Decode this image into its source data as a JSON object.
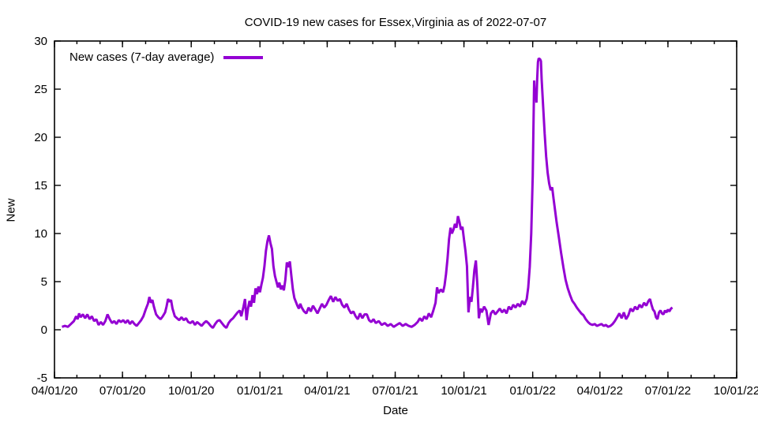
{
  "chart_data": {
    "type": "line",
    "title": "COVID-19 new cases for Essex,Virginia as of 2022-07-07",
    "xlabel": "Date",
    "ylabel": "New",
    "grid": false,
    "background_color": "#ffffff",
    "axis_color": "#000000",
    "ylim": [
      -5,
      30
    ],
    "y_ticks": [
      -5,
      0,
      5,
      10,
      15,
      20,
      25,
      30
    ],
    "xlim_dates": [
      "2020-04-01",
      "2022-10-01"
    ],
    "x_minor_tick_interval": "1 month",
    "x_ticks": [
      {
        "date": "2020-04-01",
        "label": "04/01/20"
      },
      {
        "date": "2020-07-01",
        "label": "07/01/20"
      },
      {
        "date": "2020-10-01",
        "label": "10/01/20"
      },
      {
        "date": "2021-01-01",
        "label": "01/01/21"
      },
      {
        "date": "2021-04-01",
        "label": "04/01/21"
      },
      {
        "date": "2021-07-01",
        "label": "07/01/21"
      },
      {
        "date": "2021-10-01",
        "label": "10/01/21"
      },
      {
        "date": "2022-01-01",
        "label": "01/01/22"
      },
      {
        "date": "2022-04-01",
        "label": "04/01/22"
      },
      {
        "date": "2022-07-01",
        "label": "07/01/22"
      },
      {
        "date": "2022-10-01",
        "label": "10/01/22"
      }
    ],
    "legend": {
      "position": "top-left-inside",
      "entries": [
        "New cases (7-day average)"
      ]
    },
    "series": [
      {
        "name": "New cases (7-day average)",
        "color": "#9400d3",
        "line_width": 3,
        "x_epoch": "2020-04-01",
        "x_unit": "days_since_epoch",
        "points": [
          [
            10,
            0.3
          ],
          [
            14,
            0.4
          ],
          [
            18,
            0.3
          ],
          [
            22,
            0.6
          ],
          [
            26,
            0.9
          ],
          [
            29,
            1.4
          ],
          [
            31,
            1.1
          ],
          [
            33,
            1.7
          ],
          [
            35,
            1.3
          ],
          [
            38,
            1.6
          ],
          [
            41,
            1.2
          ],
          [
            44,
            1.6
          ],
          [
            47,
            1.1
          ],
          [
            50,
            1.4
          ],
          [
            53,
            0.9
          ],
          [
            56,
            1.1
          ],
          [
            59,
            0.5
          ],
          [
            62,
            0.8
          ],
          [
            65,
            0.5
          ],
          [
            68,
            0.9
          ],
          [
            71,
            1.6
          ],
          [
            74,
            1.1
          ],
          [
            77,
            0.7
          ],
          [
            80,
            0.9
          ],
          [
            83,
            0.6
          ],
          [
            86,
            1.0
          ],
          [
            89,
            0.8
          ],
          [
            92,
            1.0
          ],
          [
            95,
            0.7
          ],
          [
            98,
            1.0
          ],
          [
            101,
            0.6
          ],
          [
            104,
            0.9
          ],
          [
            107,
            0.6
          ],
          [
            110,
            0.4
          ],
          [
            113,
            0.7
          ],
          [
            116,
            1.0
          ],
          [
            119,
            1.4
          ],
          [
            122,
            2.1
          ],
          [
            125,
            2.7
          ],
          [
            127,
            3.4
          ],
          [
            129,
            2.8
          ],
          [
            131,
            3.1
          ],
          [
            133,
            2.4
          ],
          [
            136,
            1.6
          ],
          [
            139,
            1.3
          ],
          [
            142,
            1.1
          ],
          [
            145,
            1.4
          ],
          [
            148,
            1.8
          ],
          [
            150,
            2.4
          ],
          [
            152,
            3.2
          ],
          [
            154,
            2.9
          ],
          [
            156,
            3.1
          ],
          [
            158,
            2.2
          ],
          [
            161,
            1.4
          ],
          [
            164,
            1.2
          ],
          [
            167,
            1.0
          ],
          [
            170,
            1.3
          ],
          [
            173,
            1.0
          ],
          [
            176,
            1.2
          ],
          [
            179,
            0.8
          ],
          [
            182,
            0.7
          ],
          [
            185,
            0.9
          ],
          [
            188,
            0.5
          ],
          [
            191,
            0.8
          ],
          [
            194,
            0.6
          ],
          [
            197,
            0.4
          ],
          [
            200,
            0.7
          ],
          [
            203,
            0.9
          ],
          [
            206,
            0.7
          ],
          [
            209,
            0.4
          ],
          [
            212,
            0.2
          ],
          [
            215,
            0.6
          ],
          [
            218,
            0.9
          ],
          [
            221,
            1.0
          ],
          [
            224,
            0.7
          ],
          [
            227,
            0.4
          ],
          [
            230,
            0.2
          ],
          [
            233,
            0.7
          ],
          [
            236,
            1.0
          ],
          [
            239,
            1.2
          ],
          [
            242,
            1.5
          ],
          [
            245,
            1.8
          ],
          [
            248,
            2.0
          ],
          [
            250,
            1.4
          ],
          [
            253,
            2.4
          ],
          [
            255,
            3.2
          ],
          [
            257,
            1.0
          ],
          [
            259,
            2.2
          ],
          [
            261,
            3.0
          ],
          [
            263,
            2.4
          ],
          [
            265,
            3.6
          ],
          [
            267,
            2.8
          ],
          [
            269,
            4.3
          ],
          [
            271,
            3.7
          ],
          [
            273,
            4.5
          ],
          [
            275,
            3.9
          ],
          [
            277,
            4.7
          ],
          [
            279,
            5.4
          ],
          [
            281,
            6.6
          ],
          [
            283,
            8.2
          ],
          [
            285,
            9.2
          ],
          [
            287,
            9.8
          ],
          [
            289,
            9.0
          ],
          [
            291,
            8.4
          ],
          [
            293,
            6.6
          ],
          [
            295,
            5.6
          ],
          [
            297,
            5.0
          ],
          [
            299,
            4.4
          ],
          [
            301,
            4.9
          ],
          [
            303,
            4.2
          ],
          [
            305,
            4.6
          ],
          [
            307,
            4.1
          ],
          [
            309,
            5.2
          ],
          [
            311,
            7.0
          ],
          [
            313,
            6.5
          ],
          [
            315,
            7.1
          ],
          [
            317,
            5.6
          ],
          [
            319,
            4.2
          ],
          [
            321,
            3.3
          ],
          [
            323,
            2.9
          ],
          [
            325,
            2.5
          ],
          [
            327,
            2.2
          ],
          [
            329,
            2.7
          ],
          [
            331,
            2.3
          ],
          [
            334,
            1.9
          ],
          [
            337,
            1.7
          ],
          [
            340,
            2.3
          ],
          [
            343,
            1.9
          ],
          [
            346,
            2.5
          ],
          [
            349,
            2.1
          ],
          [
            352,
            1.7
          ],
          [
            355,
            2.2
          ],
          [
            358,
            2.7
          ],
          [
            361,
            2.3
          ],
          [
            364,
            2.6
          ],
          [
            367,
            3.1
          ],
          [
            370,
            3.5
          ],
          [
            373,
            2.9
          ],
          [
            376,
            3.4
          ],
          [
            379,
            3.0
          ],
          [
            382,
            3.2
          ],
          [
            385,
            2.6
          ],
          [
            388,
            2.3
          ],
          [
            391,
            2.7
          ],
          [
            394,
            2.1
          ],
          [
            397,
            1.7
          ],
          [
            400,
            1.9
          ],
          [
            403,
            1.4
          ],
          [
            406,
            1.1
          ],
          [
            409,
            1.7
          ],
          [
            412,
            1.2
          ],
          [
            415,
            1.6
          ],
          [
            418,
            1.6
          ],
          [
            421,
            1.0
          ],
          [
            424,
            0.8
          ],
          [
            427,
            1.1
          ],
          [
            430,
            0.7
          ],
          [
            434,
            0.9
          ],
          [
            438,
            0.5
          ],
          [
            442,
            0.7
          ],
          [
            446,
            0.4
          ],
          [
            450,
            0.6
          ],
          [
            454,
            0.3
          ],
          [
            458,
            0.5
          ],
          [
            462,
            0.7
          ],
          [
            466,
            0.4
          ],
          [
            470,
            0.6
          ],
          [
            474,
            0.4
          ],
          [
            478,
            0.3
          ],
          [
            482,
            0.5
          ],
          [
            486,
            0.8
          ],
          [
            489,
            1.2
          ],
          [
            492,
            0.9
          ],
          [
            495,
            1.4
          ],
          [
            498,
            1.1
          ],
          [
            501,
            1.7
          ],
          [
            504,
            1.3
          ],
          [
            507,
            2.0
          ],
          [
            510,
            2.8
          ],
          [
            512,
            4.4
          ],
          [
            514,
            3.8
          ],
          [
            517,
            4.2
          ],
          [
            520,
            3.9
          ],
          [
            522,
            4.6
          ],
          [
            524,
            5.8
          ],
          [
            526,
            7.4
          ],
          [
            528,
            9.4
          ],
          [
            530,
            10.6
          ],
          [
            532,
            10.0
          ],
          [
            534,
            10.4
          ],
          [
            536,
            11.0
          ],
          [
            538,
            10.6
          ],
          [
            540,
            11.8
          ],
          [
            542,
            11.2
          ],
          [
            544,
            10.4
          ],
          [
            546,
            10.7
          ],
          [
            548,
            9.4
          ],
          [
            550,
            8.2
          ],
          [
            552,
            6.6
          ],
          [
            554,
            1.8
          ],
          [
            556,
            3.4
          ],
          [
            558,
            2.9
          ],
          [
            560,
            4.4
          ],
          [
            562,
            6.2
          ],
          [
            564,
            7.2
          ],
          [
            566,
            4.6
          ],
          [
            568,
            1.2
          ],
          [
            570,
            2.2
          ],
          [
            572,
            1.8
          ],
          [
            575,
            2.4
          ],
          [
            578,
            2.0
          ],
          [
            581,
            0.5
          ],
          [
            584,
            1.7
          ],
          [
            587,
            2.0
          ],
          [
            590,
            1.6
          ],
          [
            593,
            1.9
          ],
          [
            596,
            2.2
          ],
          [
            599,
            1.8
          ],
          [
            602,
            2.1
          ],
          [
            605,
            1.7
          ],
          [
            608,
            2.4
          ],
          [
            611,
            2.1
          ],
          [
            614,
            2.6
          ],
          [
            617,
            2.3
          ],
          [
            620,
            2.7
          ],
          [
            623,
            2.4
          ],
          [
            626,
            3.0
          ],
          [
            629,
            2.6
          ],
          [
            632,
            3.2
          ],
          [
            634,
            4.4
          ],
          [
            636,
            6.5
          ],
          [
            638,
            10.0
          ],
          [
            640,
            16.0
          ],
          [
            641,
            21.0
          ],
          [
            642,
            25.9
          ],
          [
            643,
            23.9
          ],
          [
            644,
            25.0
          ],
          [
            645,
            23.6
          ],
          [
            646,
            26.0
          ],
          [
            647,
            27.8
          ],
          [
            648,
            28.2
          ],
          [
            650,
            28.1
          ],
          [
            651,
            27.9
          ],
          [
            652,
            26.0
          ],
          [
            654,
            23.2
          ],
          [
            656,
            20.4
          ],
          [
            658,
            18.0
          ],
          [
            660,
            16.3
          ],
          [
            662,
            15.2
          ],
          [
            664,
            14.5
          ],
          [
            666,
            14.8
          ],
          [
            668,
            13.6
          ],
          [
            670,
            12.4
          ],
          [
            672,
            11.2
          ],
          [
            675,
            9.6
          ],
          [
            678,
            8.0
          ],
          [
            681,
            6.5
          ],
          [
            684,
            5.2
          ],
          [
            687,
            4.3
          ],
          [
            690,
            3.6
          ],
          [
            693,
            3.0
          ],
          [
            696,
            2.7
          ],
          [
            699,
            2.3
          ],
          [
            702,
            2.0
          ],
          [
            705,
            1.7
          ],
          [
            708,
            1.5
          ],
          [
            711,
            1.1
          ],
          [
            714,
            0.8
          ],
          [
            717,
            0.6
          ],
          [
            720,
            0.5
          ],
          [
            723,
            0.6
          ],
          [
            726,
            0.4
          ],
          [
            729,
            0.5
          ],
          [
            732,
            0.6
          ],
          [
            735,
            0.4
          ],
          [
            738,
            0.5
          ],
          [
            741,
            0.3
          ],
          [
            744,
            0.4
          ],
          [
            747,
            0.6
          ],
          [
            750,
            0.9
          ],
          [
            753,
            1.3
          ],
          [
            756,
            1.7
          ],
          [
            759,
            1.2
          ],
          [
            762,
            1.8
          ],
          [
            765,
            1.1
          ],
          [
            768,
            1.5
          ],
          [
            771,
            2.2
          ],
          [
            774,
            1.9
          ],
          [
            777,
            2.4
          ],
          [
            780,
            2.1
          ],
          [
            783,
            2.6
          ],
          [
            786,
            2.3
          ],
          [
            789,
            2.8
          ],
          [
            792,
            2.5
          ],
          [
            795,
            3.0
          ],
          [
            797,
            3.2
          ],
          [
            799,
            2.6
          ],
          [
            801,
            2.1
          ],
          [
            803,
            1.9
          ],
          [
            805,
            1.3
          ],
          [
            807,
            1.1
          ],
          [
            809,
            1.8
          ],
          [
            811,
            2.0
          ],
          [
            813,
            1.7
          ],
          [
            815,
            1.6
          ],
          [
            817,
            2.0
          ],
          [
            819,
            1.8
          ],
          [
            821,
            2.1
          ],
          [
            823,
            1.9
          ],
          [
            825,
            2.2
          ],
          [
            827,
            2.3
          ]
        ]
      }
    ]
  }
}
